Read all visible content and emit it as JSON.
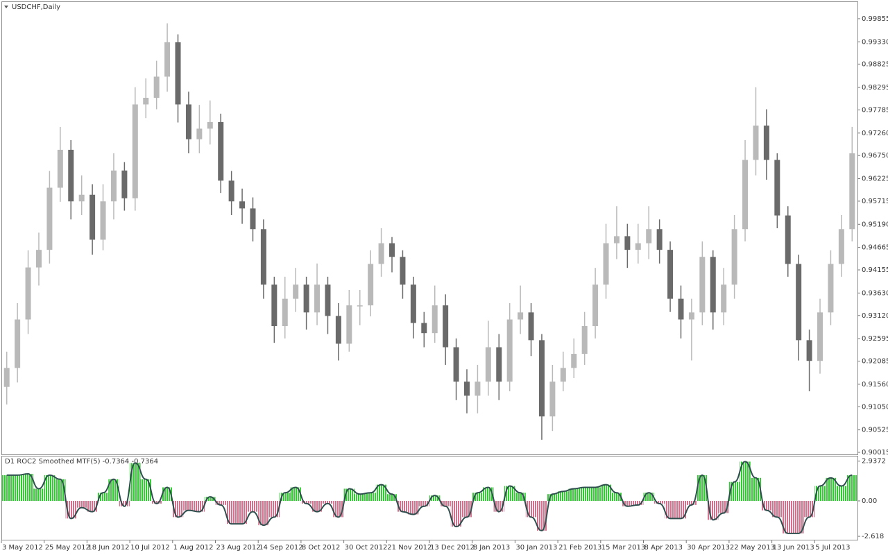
{
  "chart_data": [
    {
      "type": "candlestick",
      "title": "USDCHF,Daily",
      "categories": [
        "3 May 2012",
        null,
        null,
        null,
        "25 May 2012",
        null,
        null,
        null,
        "18 Jun 2012",
        null,
        null,
        null,
        "10 Jul 2012",
        null,
        null,
        null,
        "1 Aug 2012",
        null,
        null,
        null,
        "23 Aug 2012",
        null,
        null,
        null,
        "14 Sep 2012",
        null,
        null,
        null,
        "8 Oct 2012",
        null,
        null,
        null,
        "30 Oct 2012",
        null,
        null,
        null,
        "21 Nov 2012",
        null,
        null,
        null,
        "13 Dec 2012",
        null,
        null,
        null,
        "8 Jan 2013",
        null,
        null,
        null,
        "30 Jan 2013",
        null,
        null,
        null,
        "21 Feb 2013",
        null,
        null,
        null,
        "15 Mar 2013",
        null,
        null,
        null,
        "8 Apr 2013",
        null,
        null,
        null,
        "30 Apr 2013",
        null,
        null,
        null,
        "22 May 2013",
        null,
        null,
        null,
        "13 Jun 2013",
        null,
        null,
        null,
        "5 Jul 2013",
        null,
        null,
        null
      ],
      "open": [
        0.915,
        0.9193,
        0.9303,
        0.9421,
        0.9461,
        0.9602,
        0.9688,
        0.9571,
        0.9586,
        0.9484,
        0.9571,
        0.9641,
        0.9578,
        0.9791,
        0.9806,
        0.9854,
        0.9932,
        0.9791,
        0.9712,
        0.9736,
        0.9751,
        0.9618,
        0.9571,
        0.9555,
        0.9508,
        0.9382,
        0.9288,
        0.935,
        0.9382,
        0.9319,
        0.9382,
        0.9311,
        0.9248,
        0.9335,
        0.9335,
        0.9429,
        0.9476,
        0.9445,
        0.9382,
        0.9295,
        0.9272,
        0.9335,
        0.924,
        0.9162,
        0.913,
        0.9162,
        0.924,
        0.9162,
        0.9303,
        0.9319,
        0.9256,
        0.9083,
        0.9162,
        0.9193,
        0.9225,
        0.9288,
        0.9382,
        0.9476,
        0.9492,
        0.9461,
        0.9476,
        0.9508,
        0.9461,
        0.935,
        0.9303,
        0.9319,
        0.9445,
        0.9319,
        0.9382,
        0.9508,
        0.9665,
        0.9743,
        0.9665,
        0.9539,
        0.9429,
        0.9256,
        0.9209,
        0.9319,
        0.9429,
        0.9508
      ],
      "high": [
        0.923,
        0.934,
        0.946,
        0.95,
        0.964,
        0.974,
        0.971,
        0.963,
        0.961,
        0.961,
        0.968,
        0.966,
        0.983,
        0.985,
        0.989,
        0.9975,
        0.995,
        0.982,
        0.979,
        0.98,
        0.977,
        0.964,
        0.96,
        0.958,
        0.953,
        0.94,
        0.94,
        0.942,
        0.94,
        0.943,
        0.94,
        0.934,
        0.937,
        0.937,
        0.946,
        0.951,
        0.949,
        0.946,
        0.94,
        0.932,
        0.938,
        0.936,
        0.926,
        0.919,
        0.92,
        0.93,
        0.927,
        0.934,
        0.938,
        0.934,
        0.927,
        0.92,
        0.923,
        0.926,
        0.932,
        0.942,
        0.952,
        0.956,
        0.952,
        0.952,
        0.956,
        0.953,
        0.948,
        0.938,
        0.935,
        0.948,
        0.946,
        0.942,
        0.954,
        0.971,
        0.983,
        0.978,
        0.968,
        0.956,
        0.945,
        0.928,
        0.935,
        0.946,
        0.954,
        0.974
      ],
      "low": [
        0.911,
        0.916,
        0.927,
        0.938,
        0.943,
        0.957,
        0.953,
        0.954,
        0.945,
        0.946,
        0.953,
        0.955,
        0.955,
        0.976,
        0.978,
        0.982,
        0.975,
        0.968,
        0.968,
        0.97,
        0.959,
        0.954,
        0.952,
        0.948,
        0.935,
        0.925,
        0.926,
        0.932,
        0.928,
        0.929,
        0.927,
        0.921,
        0.923,
        0.929,
        0.931,
        0.94,
        0.941,
        0.935,
        0.926,
        0.924,
        0.925,
        0.92,
        0.912,
        0.909,
        0.909,
        0.913,
        0.912,
        0.914,
        0.927,
        0.922,
        0.903,
        0.905,
        0.914,
        0.917,
        0.92,
        0.926,
        0.935,
        0.944,
        0.942,
        0.943,
        0.944,
        0.943,
        0.932,
        0.926,
        0.921,
        0.929,
        0.928,
        0.929,
        0.935,
        0.948,
        0.963,
        0.962,
        0.951,
        0.94,
        0.921,
        0.914,
        0.918,
        0.929,
        0.94,
        0.948
      ],
      "close": [
        0.9193,
        0.9303,
        0.9421,
        0.9461,
        0.9602,
        0.9688,
        0.9571,
        0.9586,
        0.9484,
        0.9571,
        0.9641,
        0.9578,
        0.9791,
        0.9806,
        0.9854,
        0.9932,
        0.9791,
        0.9712,
        0.9736,
        0.9751,
        0.9618,
        0.9571,
        0.9555,
        0.9508,
        0.9382,
        0.9288,
        0.935,
        0.9382,
        0.9319,
        0.9382,
        0.9311,
        0.9248,
        0.9335,
        0.9335,
        0.9429,
        0.9476,
        0.9445,
        0.9382,
        0.9295,
        0.9272,
        0.9335,
        0.924,
        0.9162,
        0.913,
        0.9162,
        0.924,
        0.9162,
        0.9303,
        0.9319,
        0.9256,
        0.9083,
        0.9162,
        0.9193,
        0.9225,
        0.9288,
        0.9382,
        0.9476,
        0.9492,
        0.9461,
        0.9476,
        0.9508,
        0.9461,
        0.935,
        0.9303,
        0.9319,
        0.9445,
        0.9319,
        0.9382,
        0.9508,
        0.9665,
        0.9743,
        0.9665,
        0.9539,
        0.9429,
        0.9256,
        0.9209,
        0.9319,
        0.9429,
        0.9508,
        0.968
      ],
      "up_color": "#b9b9b9",
      "down_color": "#6a6a6a",
      "ylim": [
        0.89968,
        1.00232
      ],
      "yticks": [
        0.99855,
        {
          "value": 0.9933,
          "label": "0.99330"
        },
        0.98825,
        0.98295,
        0.97785,
        {
          "value": 0.9726,
          "label": "0.97260"
        },
        {
          "value": 0.9675,
          "label": "0.96750"
        },
        0.96225,
        0.95715,
        {
          "value": 0.9519,
          "label": "0.95190"
        },
        0.94665,
        0.94155,
        {
          "value": 0.9363,
          "label": "0.93630"
        },
        {
          "value": 0.9312,
          "label": "0.93120"
        },
        0.92595,
        0.92085,
        {
          "value": 0.9156,
          "label": "0.91560"
        },
        {
          "value": 0.9105,
          "label": "0.91050"
        },
        0.90525,
        0.90015
      ]
    },
    {
      "type": "histogram",
      "title": "D1 ROC2 Smoothed MTF(5) -0.7364 -0.7364",
      "values": [
        1.9,
        1.9,
        2.0,
        0.9,
        1.9,
        1.6,
        -1.3,
        -0.5,
        -0.8,
        0.6,
        1.6,
        -0.4,
        2.8,
        1.6,
        -0.2,
        1.0,
        -1.2,
        -0.7,
        -0.8,
        0.3,
        -0.3,
        -1.7,
        -1.7,
        -0.8,
        -1.8,
        -1.2,
        0.6,
        1.0,
        -0.2,
        -0.8,
        -0.2,
        -1.2,
        0.9,
        0.5,
        0.6,
        1.2,
        0.5,
        -0.8,
        -1.0,
        -0.4,
        0.4,
        -0.4,
        -1.9,
        -1.2,
        0.6,
        1.0,
        -0.8,
        1.1,
        0.6,
        -1.2,
        -2.2,
        0.5,
        0.7,
        0.9,
        1.0,
        1.0,
        1.2,
        0.6,
        -0.4,
        -0.3,
        0.6,
        -0.2,
        -1.3,
        -1.3,
        -0.3,
        1.9,
        -1.4,
        -0.9,
        1.4,
        2.9,
        1.7,
        -0.7,
        -1.2,
        -2.4,
        -2.4,
        -1.2,
        1.1,
        1.7,
        1.1,
        1.9
      ],
      "up_color": "#32cd32",
      "down_color": "#d4728e",
      "line_color": "#2f4f4f",
      "ylim": [
        -2.87,
        3.28
      ],
      "yticks": [
        2.9372,
        {
          "value": 0,
          "label": "0.00"
        },
        -2.618
      ]
    }
  ]
}
